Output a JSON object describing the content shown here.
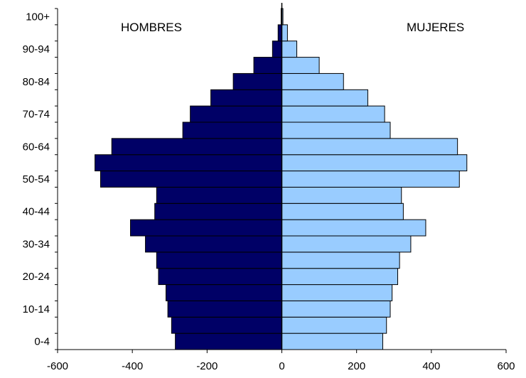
{
  "chart_data": {
    "type": "bar",
    "orientation": "horizontal",
    "layout": "population-pyramid",
    "title": "",
    "xlabel": "",
    "ylabel": "",
    "xlim": [
      -600,
      600
    ],
    "x_ticks": [
      "-600",
      "-400",
      "-200",
      "0",
      "200",
      "400",
      "600"
    ],
    "grid": false,
    "legend": "none",
    "categories": [
      "0-4",
      "5-9",
      "10-14",
      "15-19",
      "20-24",
      "25-29",
      "30-34",
      "35-39",
      "40-44",
      "45-49",
      "50-54",
      "55-59",
      "60-64",
      "65-69",
      "70-74",
      "75-79",
      "80-84",
      "85-89",
      "90-94",
      "95-99",
      "100+"
    ],
    "y_tick_labels": [
      "0-4",
      "10-14",
      "20-24",
      "30-34",
      "40-44",
      "50-54",
      "60-64",
      "70-74",
      "80-84",
      "90-94",
      "100+"
    ],
    "series": [
      {
        "name": "HOMBRES",
        "color": "#000066",
        "values": [
          -285,
          -295,
          -305,
          -310,
          -330,
          -335,
          -365,
          -405,
          -340,
          -335,
          -485,
          -500,
          -455,
          -265,
          -245,
          -190,
          -130,
          -75,
          -25,
          -10,
          -2
        ]
      },
      {
        "name": "MUJERES",
        "color": "#99ccff",
        "values": [
          270,
          280,
          290,
          295,
          310,
          315,
          345,
          385,
          325,
          320,
          475,
          495,
          470,
          290,
          275,
          230,
          165,
          100,
          40,
          15,
          3
        ]
      }
    ]
  }
}
